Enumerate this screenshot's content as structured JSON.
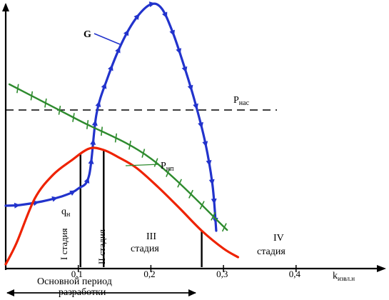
{
  "chart_data": {
    "type": "line",
    "x_ticks": [
      "0,1",
      "0,2",
      "0,3",
      "0,4"
    ],
    "x_tick_values": [
      0.1,
      0.2,
      0.3,
      0.4
    ],
    "xlabel": "kизвл.н",
    "xlabel_main": "k",
    "xlabel_sub": "извл.н",
    "xlim": [
      0,
      0.52
    ],
    "grid": false,
    "colors": {
      "G": "#2233cc",
      "Pnl": "#2e8b2e",
      "qn": "#ee2200",
      "axes": "#000000"
    },
    "series": [
      {
        "name": "G",
        "label": "G",
        "color": "#2233cc",
        "markers": "arrowhead",
        "points": [
          [
            0.0,
            288
          ],
          [
            0.02,
            287
          ],
          [
            0.05,
            282
          ],
          [
            0.08,
            274
          ],
          [
            0.1,
            264
          ],
          [
            0.115,
            245
          ],
          [
            0.125,
            160
          ],
          [
            0.14,
            110
          ],
          [
            0.16,
            60
          ],
          [
            0.18,
            25
          ],
          [
            0.2,
            6
          ],
          [
            0.215,
            12
          ],
          [
            0.23,
            45
          ],
          [
            0.245,
            90
          ],
          [
            0.26,
            140
          ],
          [
            0.275,
            200
          ],
          [
            0.285,
            260
          ],
          [
            0.29,
            323
          ]
        ]
      },
      {
        "name": "Pнп",
        "label_main": "Р",
        "label_sub": "нп",
        "color": "#2e8b2e",
        "markers": "tick",
        "points": [
          [
            0.005,
            118
          ],
          [
            0.1,
            168
          ],
          [
            0.2,
            222
          ],
          [
            0.305,
            322
          ]
        ]
      },
      {
        "name": "qн",
        "label_main": "q",
        "label_sub": "н",
        "color": "#ee2200",
        "markers": "none",
        "points": [
          [
            0.0,
            370
          ],
          [
            0.015,
            340
          ],
          [
            0.04,
            278
          ],
          [
            0.065,
            245
          ],
          [
            0.09,
            225
          ],
          [
            0.115,
            208
          ],
          [
            0.135,
            210
          ],
          [
            0.155,
            220
          ],
          [
            0.18,
            235
          ],
          [
            0.21,
            262
          ],
          [
            0.24,
            292
          ],
          [
            0.27,
            323
          ],
          [
            0.3,
            348
          ],
          [
            0.32,
            360
          ]
        ]
      }
    ],
    "reference_lines": [
      {
        "name": "Pнас",
        "label_main": "Р",
        "label_sub": "нас",
        "style": "dashed",
        "y": 154
      }
    ],
    "stage_boundaries": [
      0.103,
      0.135,
      0.27
    ],
    "stages": [
      {
        "id": "I",
        "label": "I стадия",
        "orientation": "vertical"
      },
      {
        "id": "II",
        "label": "II стадия",
        "orientation": "vertical"
      },
      {
        "id": "III",
        "label_top": "III",
        "label_bottom": "стадия",
        "orientation": "horizontal"
      },
      {
        "id": "IV",
        "label_top": "IV",
        "label_bottom": "стадия",
        "orientation": "horizontal"
      }
    ],
    "main_period": {
      "label_line1": "Основной период",
      "label_line2": "разработки"
    }
  }
}
